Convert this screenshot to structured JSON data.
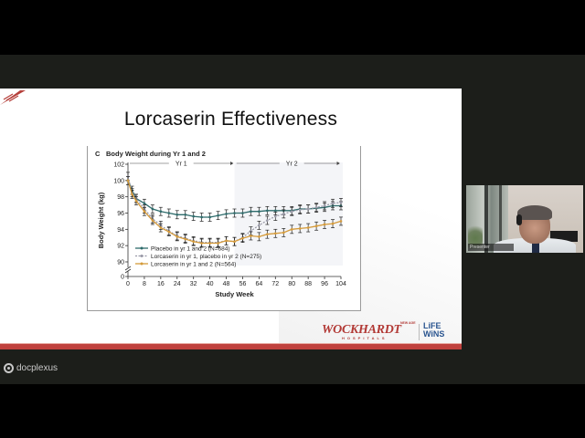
{
  "slide": {
    "title": "Lorcaserin Effectiveness",
    "brand": {
      "wockhardt": "WOCKHARDT",
      "wockhardt_sub": "HOSPITALS",
      "wockhardt_tag": "NEW AGE",
      "lifewins_line1": "LiFE",
      "lifewins_line2": "WiNS"
    },
    "accent_color": "#c0413d"
  },
  "chart_data": {
    "type": "line",
    "panel_label": "C",
    "title": "Body Weight during Yr 1 and 2",
    "xlabel": "Study Week",
    "ylabel": "Body Weight (kg)",
    "period_labels": [
      "Yr 1",
      "Yr 2"
    ],
    "x_ticks": [
      0,
      8,
      16,
      24,
      32,
      40,
      48,
      56,
      64,
      72,
      80,
      88,
      96,
      104
    ],
    "y_ticks": [
      0,
      90,
      92,
      94,
      96,
      98,
      100,
      102
    ],
    "ylim": [
      90,
      102
    ],
    "axis_break": true,
    "legend_position": "lower-left",
    "x": [
      0,
      2,
      4,
      8,
      12,
      16,
      20,
      24,
      28,
      32,
      36,
      40,
      44,
      48,
      52,
      56,
      60,
      64,
      68,
      72,
      76,
      80,
      84,
      88,
      92,
      96,
      100,
      104
    ],
    "series": [
      {
        "name": "Placebo in yr 1 and 2 (N=684)",
        "color": "#2e6b6b",
        "values": [
          100.0,
          98.8,
          97.8,
          97.2,
          96.5,
          96.2,
          96.0,
          95.8,
          95.8,
          95.6,
          95.5,
          95.5,
          95.7,
          95.9,
          96.0,
          96.0,
          96.2,
          96.2,
          96.3,
          96.3,
          96.3,
          96.3,
          96.5,
          96.5,
          96.6,
          96.7,
          96.9,
          96.9
        ]
      },
      {
        "name": "Lorcaserin in yr 1, placebo in yr 2 (N=275)",
        "color": "#9a9aa8",
        "values": [
          100.5,
          98.5,
          97.8,
          96.5,
          95.3,
          94.5,
          93.8,
          93.2,
          92.9,
          92.6,
          92.4,
          92.4,
          92.4,
          92.6,
          92.5,
          93.0,
          93.8,
          94.5,
          95.1,
          95.6,
          95.9,
          96.2,
          96.4,
          96.5,
          96.7,
          96.9,
          97.2,
          97.3
        ]
      },
      {
        "name": "Lorcaserin in yr 1 and 2 (N=564)",
        "color": "#d49a3a",
        "values": [
          100.0,
          98.3,
          97.5,
          96.2,
          95.1,
          94.2,
          93.7,
          93.1,
          92.8,
          92.5,
          92.3,
          92.3,
          92.3,
          92.6,
          92.5,
          92.9,
          93.2,
          93.1,
          93.4,
          93.5,
          93.6,
          94.0,
          94.1,
          94.2,
          94.4,
          94.6,
          94.7,
          95.0
        ]
      }
    ]
  },
  "video_tile": {
    "participant_label": "Presenter"
  },
  "watermark": {
    "text": "docplexus"
  }
}
